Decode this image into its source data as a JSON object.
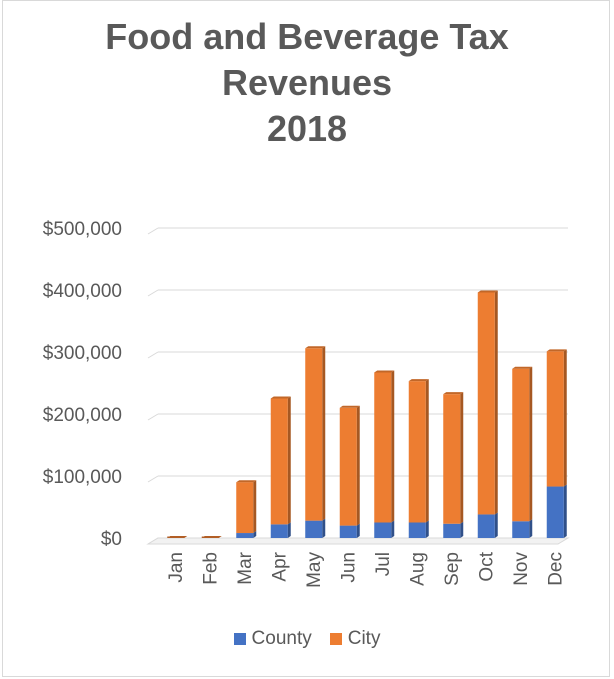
{
  "chart_data": {
    "type": "bar",
    "stacked": true,
    "title": [
      "Food and Beverage Tax",
      "Revenues",
      "2018"
    ],
    "categories": [
      "Jan",
      "Feb",
      "Mar",
      "Apr",
      "May",
      "Jun",
      "Jul",
      "Aug",
      "Sep",
      "Oct",
      "Nov",
      "Dec"
    ],
    "series": [
      {
        "name": "County",
        "color": "#4472c4",
        "values": [
          0,
          0,
          8000,
          22000,
          28000,
          20000,
          25000,
          25000,
          23000,
          38000,
          27000,
          83000
        ]
      },
      {
        "name": "City",
        "color": "#ed7d31",
        "values": [
          0,
          0,
          82000,
          203000,
          278000,
          190000,
          242000,
          228000,
          209000,
          358000,
          246000,
          218000
        ]
      }
    ],
    "ylim": [
      0,
      500000
    ],
    "yticks": [
      0,
      100000,
      200000,
      300000,
      400000,
      500000
    ],
    "ytick_labels": [
      "$0",
      "$100,000",
      "$200,000",
      "$300,000",
      "$400,000",
      "$500,000"
    ],
    "grid": true,
    "legend_position": "bottom"
  }
}
